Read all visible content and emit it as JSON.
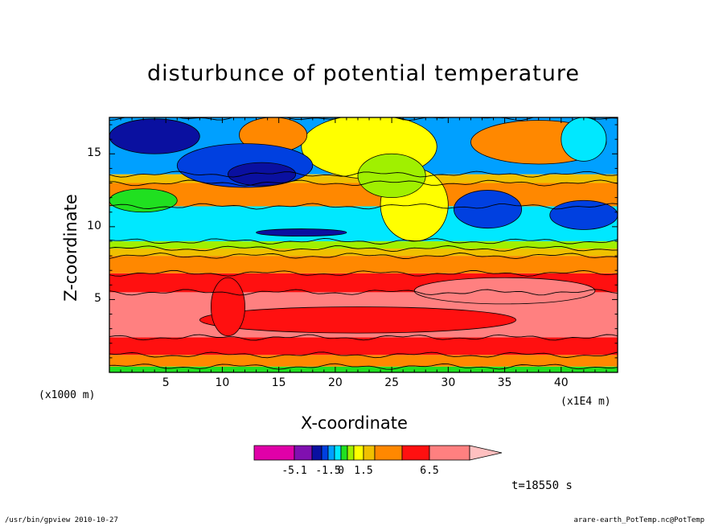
{
  "chart_data": {
    "type": "heatmap",
    "title": "disturbunce of potential temperature",
    "xlabel": "X-coordinate",
    "ylabel": "Z-coordinate",
    "x_unit_label": "(x1000 m)",
    "x_scale_label": "(x1E4 m)",
    "x_ticks": [
      5,
      10,
      15,
      20,
      25,
      30,
      35,
      40
    ],
    "y_ticks": [
      5,
      10,
      15
    ],
    "xlim": [
      0,
      45
    ],
    "ylim": [
      0,
      17.5
    ],
    "grid": false,
    "colorbar": {
      "labels": [
        "-5.1",
        "-1.5",
        "0",
        "1.5",
        "6.5"
      ],
      "colors": [
        "#e000a8",
        "#8010b0",
        "#0a10a0",
        "#0040e0",
        "#00a0ff",
        "#00e8ff",
        "#20e020",
        "#a0f000",
        "#ffff00",
        "#f0c000",
        "#ff8800",
        "#ff1010",
        "#ff8080"
      ]
    },
    "bands": [
      {
        "z": [
          0.0,
          0.4
        ],
        "level": "cyan-green"
      },
      {
        "z": [
          0.4,
          1.2
        ],
        "level": 1.5
      },
      {
        "z": [
          1.2,
          2.4
        ],
        "level": 2.5
      },
      {
        "z": [
          2.4,
          5.5
        ],
        "level": 5.0
      },
      {
        "z": [
          5.5,
          6.8
        ],
        "level": 4.0
      },
      {
        "z": [
          6.8,
          8.4
        ],
        "level": 2.5
      },
      {
        "z": [
          8.4,
          9.2
        ],
        "level": 1.5
      },
      {
        "z": [
          9.2,
          11.5
        ],
        "level": -1.0
      },
      {
        "z": [
          11.5,
          13.5
        ],
        "level": 1.0
      },
      {
        "z": [
          13.5,
          17.5
        ],
        "level": -2.0
      }
    ]
  },
  "annotations": {
    "timestamp": "t=18550 s",
    "footer_left": "/usr/bin/gpview  2010-10-27",
    "footer_right": "arare-earth_PotTemp.nc@PotTemp"
  }
}
